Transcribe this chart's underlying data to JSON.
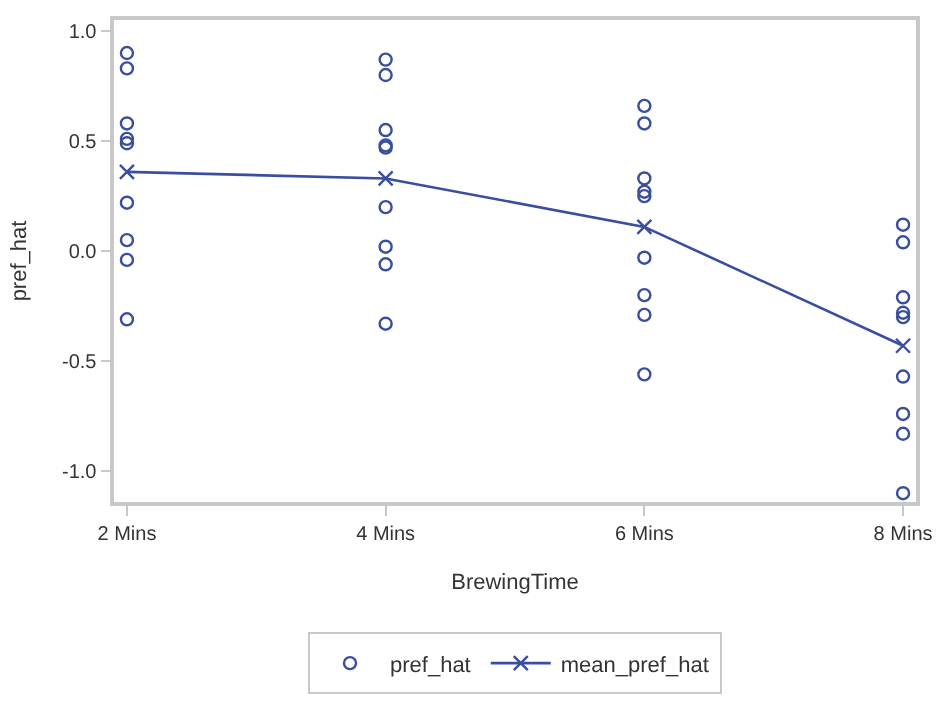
{
  "chart_data": {
    "type": "line",
    "xlabel": "BrewingTime",
    "ylabel": "pref_hat",
    "categories": [
      "2 Mins",
      "4 Mins",
      "6 Mins",
      "8 Mins"
    ],
    "ylim": [
      -1.14,
      1.05
    ],
    "yticks": [
      {
        "value": -1,
        "label": "-1.0"
      },
      -0.5,
      {
        "value": 0,
        "label": "0.0"
      },
      0.5,
      {
        "value": 1,
        "label": "1.0"
      }
    ],
    "grid": false,
    "legend": "bottom",
    "series": [
      {
        "name": "pref_hat",
        "type": "scatter",
        "marker": "circle",
        "color": "#3a4ea0",
        "x": [
          "2 Mins",
          "2 Mins",
          "2 Mins",
          "2 Mins",
          "2 Mins",
          "2 Mins",
          "2 Mins",
          "2 Mins",
          "2 Mins",
          "4 Mins",
          "4 Mins",
          "4 Mins",
          "4 Mins",
          "4 Mins",
          "4 Mins",
          "4 Mins",
          "4 Mins",
          "4 Mins",
          "6 Mins",
          "6 Mins",
          "6 Mins",
          "6 Mins",
          "6 Mins",
          "6 Mins",
          "6 Mins",
          "6 Mins",
          "6 Mins",
          "8 Mins",
          "8 Mins",
          "8 Mins",
          "8 Mins",
          "8 Mins",
          "8 Mins",
          "8 Mins",
          "8 Mins",
          "8 Mins"
        ],
        "values": [
          0.9,
          0.83,
          0.58,
          0.51,
          0.49,
          0.22,
          0.05,
          -0.04,
          -0.31,
          0.87,
          0.8,
          0.55,
          0.48,
          0.47,
          0.2,
          0.02,
          -0.06,
          -0.33,
          0.66,
          0.58,
          0.33,
          0.27,
          0.25,
          -0.03,
          -0.2,
          -0.29,
          -0.56,
          0.12,
          0.04,
          -0.21,
          -0.28,
          -0.3,
          -0.57,
          -0.74,
          -0.83,
          -1.1
        ]
      },
      {
        "name": "mean_pref_hat",
        "marker": "cross",
        "line_style": "solid",
        "color": "#3a4ea0",
        "values": [
          0.36,
          0.33,
          0.11,
          -0.43
        ]
      }
    ]
  }
}
